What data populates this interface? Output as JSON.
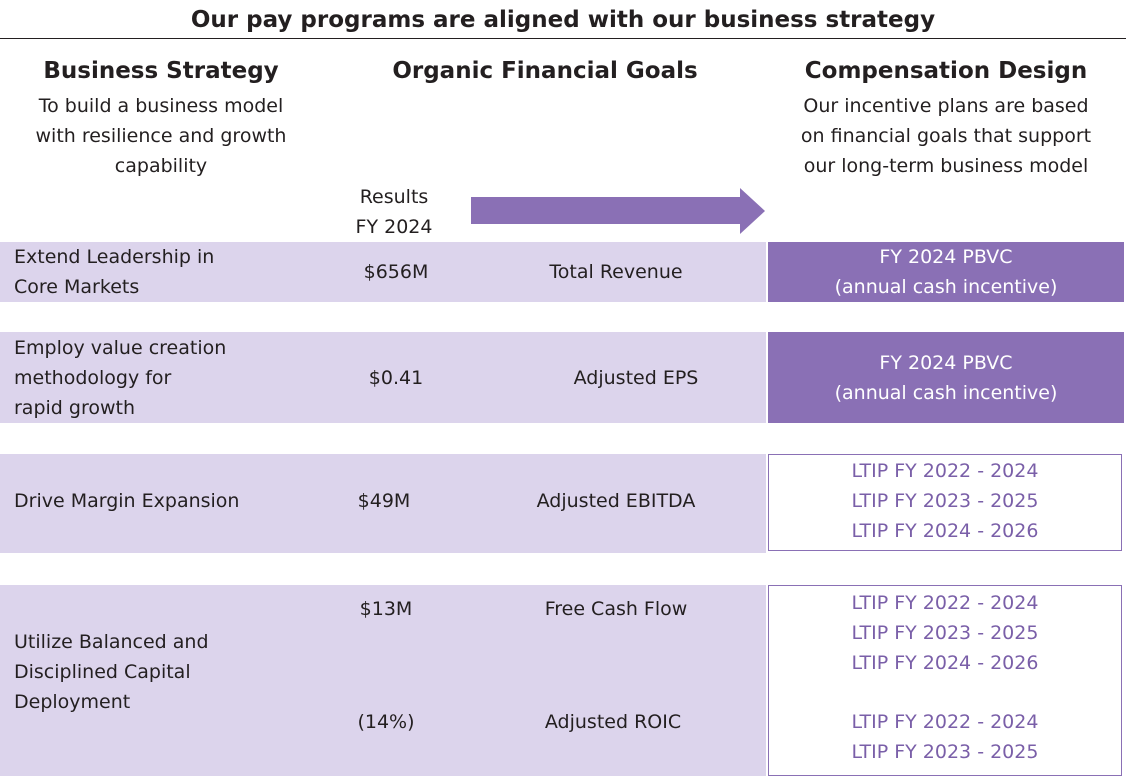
{
  "title": "Our pay programs are aligned with our business strategy",
  "columns": {
    "strategy": {
      "heading": "Business Strategy",
      "subtitle": [
        "To build a business model",
        "with resilience and growth",
        "capability"
      ]
    },
    "goals": {
      "heading": "Organic Financial Goals"
    },
    "compensation": {
      "heading": "Compensation Design",
      "subtitle": [
        "Our incentive plans are based",
        "on financial goals that support",
        "our long-term business model"
      ]
    },
    "results": {
      "heading": [
        "Results",
        "FY 2024"
      ]
    }
  },
  "rows": [
    {
      "strategy": [
        "Extend Leadership in",
        "Core Markets"
      ],
      "result": "$656M",
      "goal": "Total Revenue",
      "compensation": [
        "FY 2024 PBVC",
        "(annual cash incentive)"
      ]
    },
    {
      "strategy": [
        "Employ value creation",
        "methodology for",
        "rapid growth"
      ],
      "result": "$0.41",
      "goal": "Adjusted EPS",
      "compensation": [
        "FY 2024 PBVC",
        "(annual cash incentive)"
      ]
    },
    {
      "strategy": [
        "Drive Margin Expansion"
      ],
      "result": "$49M",
      "goal": "Adjusted EBITDA",
      "compensation": [
        "LTIP FY 2022 - 2024",
        "LTIP FY 2023 - 2025",
        "LTIP FY 2024 - 2026"
      ]
    },
    {
      "strategy": [
        "Utilize Balanced and",
        "Disciplined Capital",
        "Deployment"
      ],
      "sub_rows": [
        {
          "result": "$13M",
          "goal": "Free Cash Flow",
          "compensation": [
            "LTIP FY 2022 - 2024",
            "LTIP FY 2023 - 2025",
            "LTIP FY 2024 - 2026"
          ]
        },
        {
          "result": "(14%)",
          "goal": "Adjusted ROIC",
          "compensation": [
            "LTIP FY 2022 - 2024",
            "LTIP FY 2023 - 2025"
          ]
        }
      ]
    }
  ],
  "colors": {
    "accent": "#8a70b5",
    "band": "#dcd4ec",
    "outline_text": "#7a5fa8"
  }
}
